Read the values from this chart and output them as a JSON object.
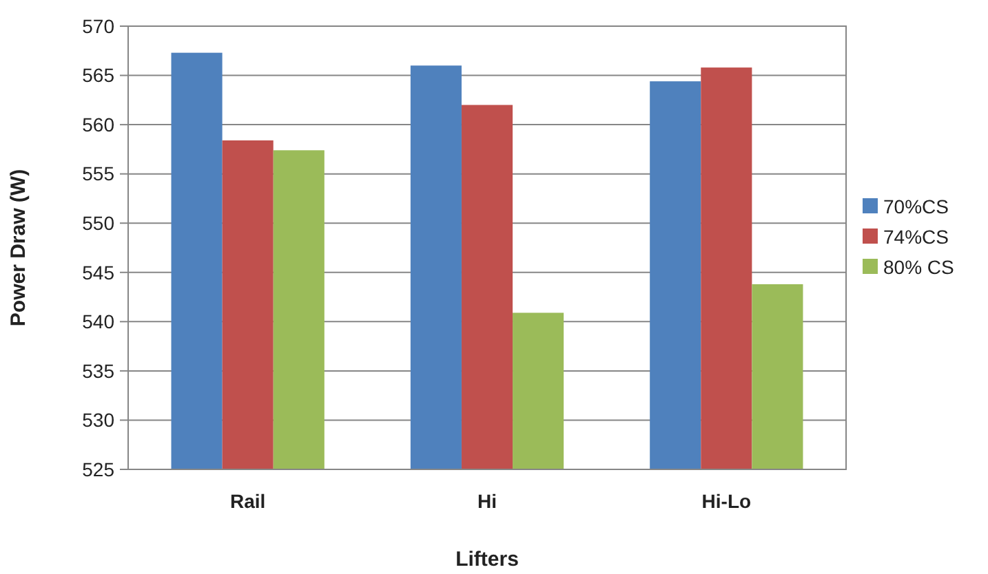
{
  "chart_data": {
    "type": "bar",
    "xlabel": "Lifters",
    "ylabel": "Power Draw (W)",
    "categories": [
      "Rail",
      "Hi",
      "Hi-Lo"
    ],
    "series": [
      {
        "name": "70%CS",
        "color": "#4f81bd",
        "values": [
          567.3,
          566.0,
          564.4
        ]
      },
      {
        "name": "74%CS",
        "color": "#c0504d",
        "values": [
          558.4,
          562.0,
          565.8
        ]
      },
      {
        "name": "80% CS",
        "color": "#9bbb59",
        "values": [
          557.4,
          540.9,
          543.8
        ]
      }
    ],
    "ylim": [
      525,
      570
    ],
    "yticks": [
      525,
      530,
      535,
      540,
      545,
      550,
      555,
      560,
      565,
      570
    ],
    "grid": "y",
    "legend": "right"
  }
}
